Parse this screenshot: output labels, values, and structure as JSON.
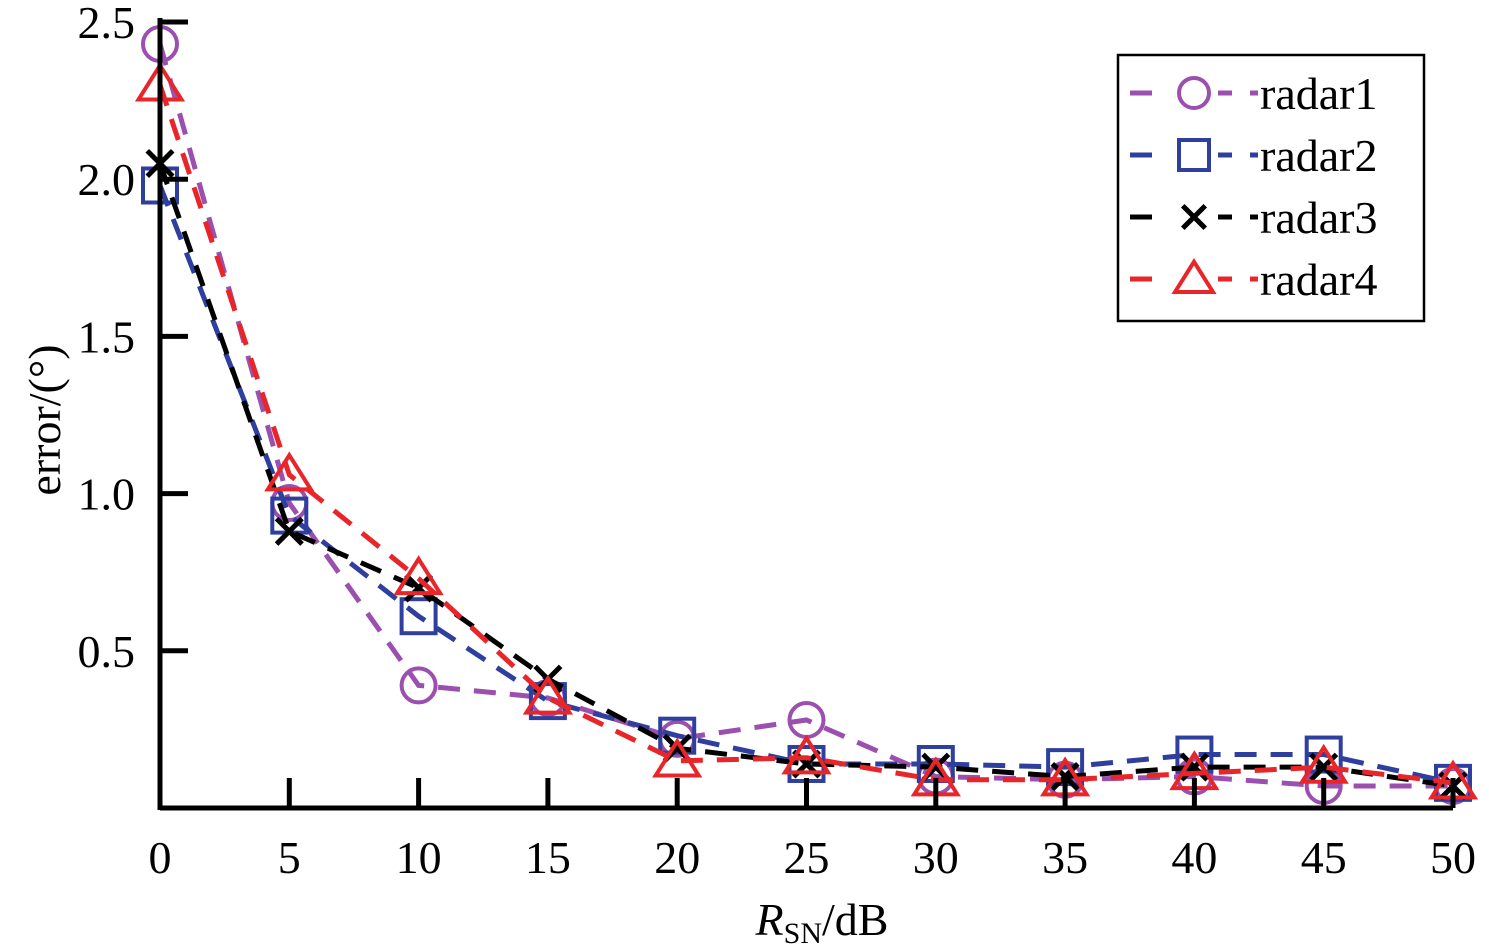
{
  "chart_data": {
    "type": "line",
    "title": "",
    "xlabel_main": "R",
    "xlabel_sub": "SN",
    "xlabel_unit": "/dB",
    "ylabel": "error/(°)",
    "x": [
      0,
      5,
      10,
      15,
      20,
      25,
      30,
      35,
      40,
      45,
      50
    ],
    "xlim": [
      0,
      50
    ],
    "ylim": [
      0,
      2.5
    ],
    "xticks": [
      "0",
      "5",
      "10",
      "15",
      "20",
      "25",
      "30",
      "35",
      "40",
      "45",
      "50"
    ],
    "yticks": [
      "0.5",
      "1.0",
      "1.5",
      "2.0",
      "2.5"
    ],
    "ytick_values": [
      0.5,
      1.0,
      1.5,
      2.0,
      2.5
    ],
    "grid": false,
    "legend_position": "top-right",
    "series": [
      {
        "name": "radar1",
        "color": "#9b4fae",
        "marker": "circle",
        "values": [
          2.43,
          0.97,
          0.39,
          0.35,
          0.22,
          0.28,
          0.1,
          0.09,
          0.1,
          0.07,
          0.07
        ]
      },
      {
        "name": "radar2",
        "color": "#2e3f9e",
        "marker": "square",
        "values": [
          1.98,
          0.93,
          0.61,
          0.34,
          0.23,
          0.14,
          0.14,
          0.13,
          0.17,
          0.17,
          0.08
        ]
      },
      {
        "name": "radar3",
        "color": "#000000",
        "marker": "x",
        "values": [
          2.05,
          0.88,
          0.7,
          0.41,
          0.19,
          0.14,
          0.13,
          0.1,
          0.13,
          0.13,
          0.07
        ]
      },
      {
        "name": "radar4",
        "color": "#e8262a",
        "marker": "triangle",
        "values": [
          2.3,
          1.06,
          0.73,
          0.35,
          0.15,
          0.16,
          0.09,
          0.09,
          0.11,
          0.13,
          0.08
        ]
      }
    ]
  }
}
